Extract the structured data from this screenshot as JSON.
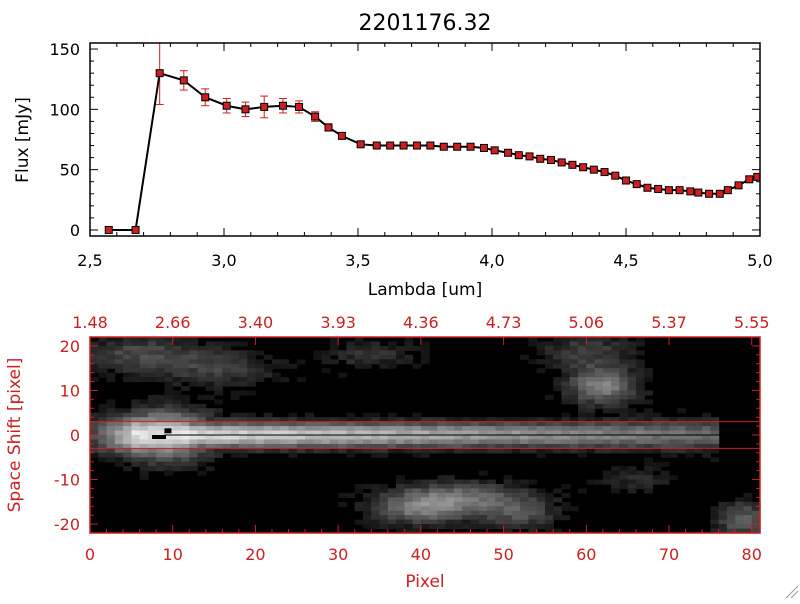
{
  "chart_data": [
    {
      "type": "line",
      "title": "2201176.32",
      "xlabel": "Lambda [um]",
      "ylabel": "Flux [mJy]",
      "xlim": [
        2.5,
        5.0
      ],
      "ylim": [
        -5,
        155
      ],
      "x_ticks": [
        "2.5",
        "3.0",
        "3.5",
        "4.0",
        "4.5",
        "5.0"
      ],
      "y_ticks": [
        "0",
        "50",
        "100",
        "150"
      ],
      "marker": "square",
      "marker_color": "#cc2020",
      "line_color": "#000000",
      "errorbar_color": "#cc2020",
      "series": [
        {
          "x": [
            2.57,
            2.67,
            2.76,
            2.85,
            2.93,
            3.01,
            3.08,
            3.15,
            3.22,
            3.28,
            3.34,
            3.39,
            3.44,
            3.51,
            3.57,
            3.62,
            3.67,
            3.72,
            3.77,
            3.82,
            3.87,
            3.92,
            3.97,
            4.01,
            4.06,
            4.1,
            4.14,
            4.18,
            4.22,
            4.26,
            4.3,
            4.34,
            4.38,
            4.42,
            4.46,
            4.5,
            4.54,
            4.58,
            4.62,
            4.66,
            4.7,
            4.74,
            4.77,
            4.81,
            4.85,
            4.88,
            4.92,
            4.96,
            4.99
          ],
          "values": [
            0,
            0,
            130,
            124,
            110,
            103,
            100,
            102,
            103,
            102,
            94,
            85,
            78,
            71,
            70,
            70,
            70,
            70,
            70,
            69,
            69,
            69,
            68,
            66,
            64,
            62,
            61,
            59,
            58,
            56,
            54,
            52,
            50,
            48,
            45,
            41,
            38,
            35,
            34,
            33,
            33,
            32,
            31,
            30,
            30,
            33,
            37,
            42,
            44
          ],
          "errors": [
            0,
            0,
            26,
            8,
            7,
            6,
            6,
            9,
            6,
            5,
            4,
            3,
            2,
            2,
            1,
            1,
            1,
            1,
            1,
            1,
            1,
            1,
            1,
            1,
            1,
            1,
            1,
            1,
            1,
            1,
            1,
            1,
            1,
            1,
            1,
            1,
            1,
            1,
            1,
            1,
            1,
            1,
            1,
            1,
            1,
            1,
            1,
            2,
            2
          ]
        }
      ]
    },
    {
      "type": "heatmap",
      "xlabel": "Pixel",
      "ylabel": "Space Shift [pixel]",
      "xlim": [
        0,
        81
      ],
      "ylim": [
        -22,
        22
      ],
      "x_ticks": [
        "0",
        "10",
        "20",
        "30",
        "40",
        "50",
        "60",
        "70",
        "80"
      ],
      "y_ticks": [
        "-20",
        "-10",
        "0",
        "10",
        "20"
      ],
      "top_axis_ticks": [
        "1.48",
        "2.66",
        "3.40",
        "3.93",
        "4.36",
        "4.73",
        "5.06",
        "5.37",
        "5.55"
      ],
      "extraction_window": [
        -3,
        3
      ],
      "trace_center": 0,
      "axis_color": "#cc2020",
      "colormap": "grayscale"
    }
  ]
}
